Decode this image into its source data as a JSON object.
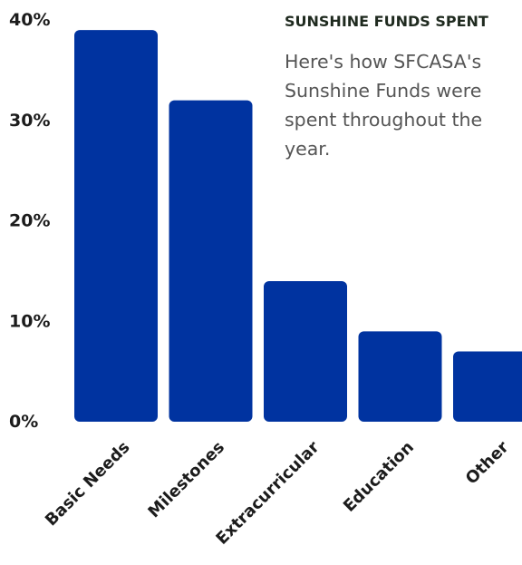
{
  "chart_data": {
    "type": "bar",
    "title": "SUNSHINE FUNDS SPENT",
    "annotation": "Here's how SFCASA's Sunshine Funds were spent throughout the year.",
    "categories": [
      "Basic Needs",
      "Milestones",
      "Extracurricular",
      "Education",
      "Other"
    ],
    "values": [
      39,
      32,
      14,
      9,
      7
    ],
    "y_unit": "%",
    "ylim": [
      0,
      40
    ],
    "yticks": [
      "0%",
      "10%",
      "20%",
      "30%",
      "40%"
    ],
    "grid": false,
    "bar_color": "#0033a0",
    "xlabel": "",
    "ylabel": ""
  }
}
